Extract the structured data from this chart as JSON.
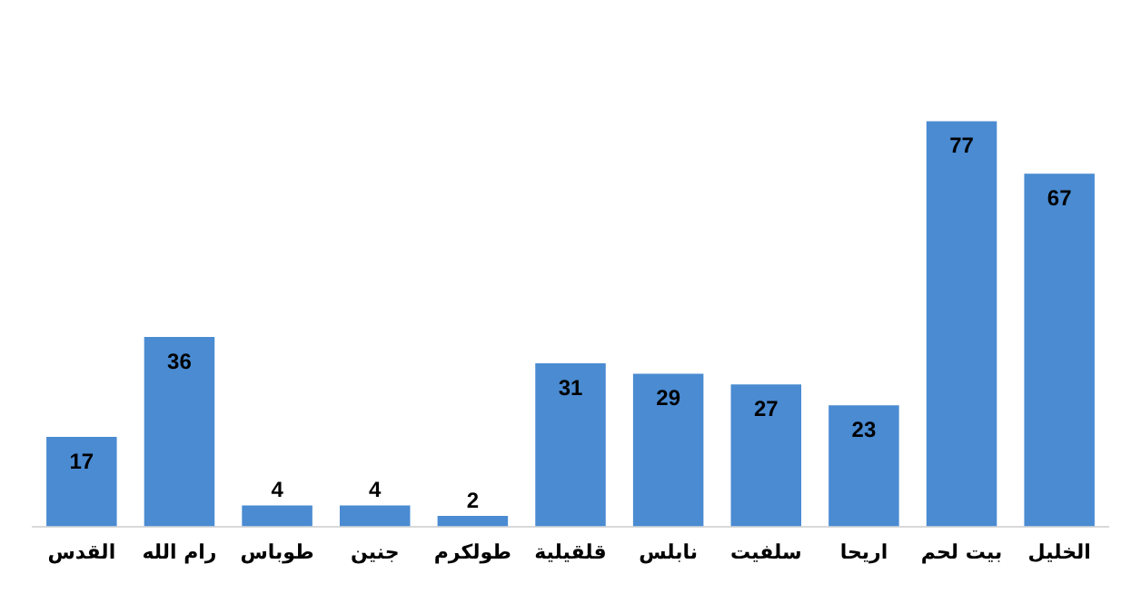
{
  "chart_data": {
    "type": "bar",
    "categories": [
      "القدس",
      "رام الله",
      "طوباس",
      "جنين",
      "طولكرم",
      "قلقيلية",
      "نابلس",
      "سلفيت",
      "اريحا",
      "بيت لحم",
      "الخليل"
    ],
    "values": [
      17,
      36,
      4,
      4,
      2,
      31,
      29,
      27,
      23,
      77,
      67
    ],
    "color": "#4a8bd2",
    "data_labels": true,
    "grid": false,
    "legend": false
  }
}
